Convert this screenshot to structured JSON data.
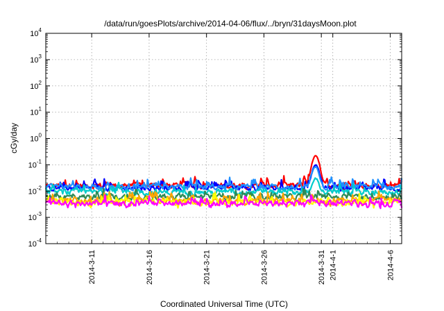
{
  "chart_data": {
    "type": "line",
    "title": "/data/run/goesPlots/archive/2014-04-06/flux/../bryn/31daysMoon.plot",
    "xlabel": "Coordinated Universal Time (UTC)",
    "ylabel": "cGy/day",
    "x_range": [
      "2014-03-07",
      "2014-04-07"
    ],
    "ylim": [
      0.0001,
      10000
    ],
    "yscale": "log",
    "grid": true,
    "legend": "none",
    "x_ticks": [
      "2014-3-11",
      "2014-3-16",
      "2014-3-21",
      "2014-3-26",
      "2014-3-31",
      "2014-4-1",
      "2014-4-6"
    ],
    "y_ticks": [
      {
        "base": "10",
        "exp": "-4"
      },
      {
        "base": "10",
        "exp": "-3"
      },
      {
        "base": "10",
        "exp": "-2"
      },
      {
        "base": "10",
        "exp": "-1"
      },
      {
        "base": "10",
        "exp": "0"
      },
      {
        "base": "10",
        "exp": "1"
      },
      {
        "base": "10",
        "exp": "2"
      },
      {
        "base": "10",
        "exp": "3"
      },
      {
        "base": "10",
        "exp": "4"
      }
    ],
    "series": [
      {
        "color": "#ff0000",
        "baseline": 0.016,
        "peak": {
          "x": "2014-03-30",
          "value": 0.22
        }
      },
      {
        "color": "#0000ff",
        "baseline": 0.013,
        "peak": {
          "x": "2014-03-30",
          "value": 0.1
        }
      },
      {
        "color": "#1e90ff",
        "baseline": 0.014,
        "peak": {
          "x": "2014-03-30",
          "value": 0.08
        }
      },
      {
        "color": "#00cccc",
        "baseline": 0.009,
        "peak": {
          "x": "2014-03-30",
          "value": 0.03
        }
      },
      {
        "color": "#2e8b57",
        "baseline": 0.006
      },
      {
        "color": "#ffa500",
        "baseline": 0.0045
      },
      {
        "color": "#ffff00",
        "baseline": 0.0038
      },
      {
        "color": "#ff00ff",
        "baseline": 0.0035
      }
    ]
  }
}
